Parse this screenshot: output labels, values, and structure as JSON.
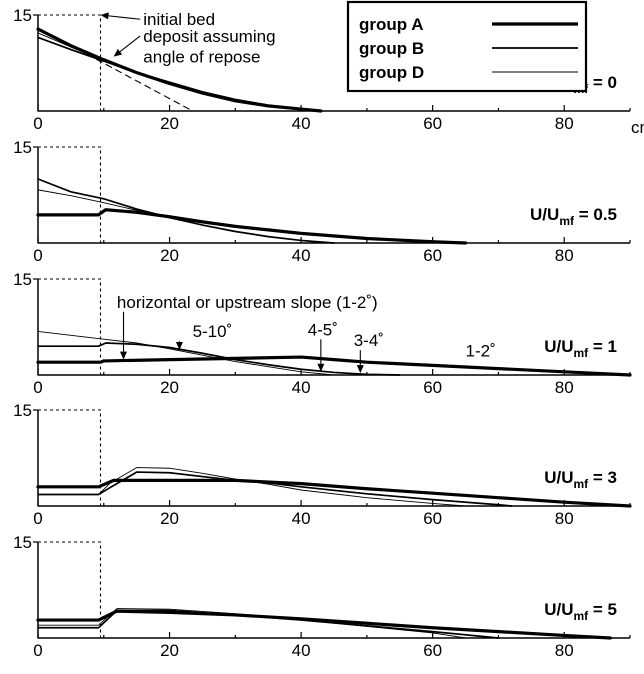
{
  "chart_data": {
    "type": "line",
    "x_unit": "cm",
    "xlim": [
      0,
      90
    ],
    "ylim": [
      0,
      15
    ],
    "x_ticks": [
      "0",
      "20",
      "40",
      "60",
      "80"
    ],
    "y_ticks": [
      "15"
    ],
    "legend": {
      "placement": "top-right",
      "entries": [
        {
          "name": "group A",
          "weight": "thick"
        },
        {
          "name": "group B",
          "weight": "medium"
        },
        {
          "name": "group D",
          "weight": "thin"
        }
      ]
    },
    "panels": [
      {
        "label_main": "U/U",
        "label_sub": "mf",
        "label_value": " = 0",
        "show_unit": true,
        "initial_bed": {
          "x": [
            0,
            9.5,
            9.5
          ],
          "y": [
            15,
            15,
            0
          ]
        },
        "angle_of_repose": {
          "x": [
            0,
            23.5
          ],
          "y": [
            13,
            0
          ]
        },
        "series": [
          {
            "name": "group A",
            "x": [
              0,
              5,
              10,
              15,
              20,
              25,
              30,
              35,
              40,
              43
            ],
            "y": [
              12.8,
              10.2,
              8,
              6,
              4.3,
              2.8,
              1.6,
              0.8,
              0.3,
              0
            ]
          },
          {
            "name": "group B",
            "x": [
              0,
              5,
              10,
              15,
              20,
              25,
              30,
              35,
              40,
              43
            ],
            "y": [
              11.5,
              9.6,
              7.8,
              6,
              4.5,
              3,
              1.8,
              0.9,
              0.3,
              0
            ]
          },
          {
            "name": "group D",
            "x": [
              0,
              5,
              10,
              15,
              20,
              25,
              30,
              35,
              40,
              43
            ],
            "y": [
              12.2,
              10,
              7.9,
              5.9,
              4.3,
              2.8,
              1.6,
              0.8,
              0.3,
              0
            ]
          }
        ],
        "annotations": [
          {
            "text": "initial bed",
            "x": 9.5,
            "y": 15,
            "tx": 16,
            "ty": 13.4
          },
          {
            "text": "deposit assuming",
            "x": 11.5,
            "y": 8.5,
            "tx": 16,
            "ty": 10.8
          },
          {
            "text": "angle of repose",
            "x": null,
            "y": null,
            "tx": 16,
            "ty": 7.6
          }
        ]
      },
      {
        "label_main": "U/U",
        "label_sub": "mf",
        "label_value": " = 0.5",
        "show_unit": false,
        "initial_bed": {
          "x": [
            0,
            9.5,
            9.5
          ],
          "y": [
            15,
            15,
            0
          ]
        },
        "series": [
          {
            "name": "group A",
            "x": [
              0,
              9.2,
              10.3,
              15,
              20,
              25,
              30,
              40,
              50,
              60,
              65
            ],
            "y": [
              4.4,
              4.4,
              5.2,
              4.8,
              4.1,
              3.3,
              2.6,
              1.5,
              0.7,
              0.2,
              0
            ]
          },
          {
            "name": "group B",
            "x": [
              0,
              5,
              10,
              15,
              20,
              25,
              30,
              35,
              40,
              45
            ],
            "y": [
              10,
              8,
              6.9,
              5.3,
              4,
              2.8,
              1.8,
              1,
              0.4,
              0
            ]
          },
          {
            "name": "group D",
            "x": [
              0,
              5,
              10,
              15,
              20,
              25,
              30,
              35,
              40,
              43
            ],
            "y": [
              8.3,
              7.4,
              6.3,
              5.1,
              3.9,
              2.8,
              1.8,
              1,
              0.4,
              0
            ]
          }
        ]
      },
      {
        "label_main": "U/U",
        "label_sub": "mf",
        "label_value": " = 1",
        "show_unit": false,
        "initial_bed": {
          "x": [
            0,
            9.5,
            9.5
          ],
          "y": [
            15,
            15,
            0
          ]
        },
        "series": [
          {
            "name": "group A",
            "x": [
              0,
              9.5,
              10,
              20,
              30,
              40,
              45,
              50,
              60,
              70,
              80,
              90
            ],
            "y": [
              2,
              2,
              2.2,
              2.4,
              2.6,
              2.8,
              2.4,
              2,
              1.5,
              1,
              0.5,
              0
            ]
          },
          {
            "name": "group B",
            "x": [
              0,
              9.2,
              10.3,
              15,
              20,
              25,
              30,
              35,
              40,
              45,
              50,
              55
            ],
            "y": [
              4.5,
              4.5,
              5,
              4.8,
              4.3,
              3.4,
              2.4,
              1.6,
              0.9,
              0.4,
              0.1,
              0
            ]
          },
          {
            "name": "group D",
            "x": [
              0,
              5,
              10,
              15,
              20,
              25,
              30,
              35,
              40,
              45
            ],
            "y": [
              6.8,
              6.2,
              5.6,
              5,
              4.1,
              3.1,
              2.1,
              1.3,
              0.5,
              0
            ]
          }
        ],
        "annotations": [
          {
            "text": "horizontal or upstream slope (1-2˚)",
            "x": 13,
            "y": 2.4,
            "tx": 12,
            "ty": 10.5
          },
          {
            "text": "5-10˚",
            "x": 21.5,
            "y": 3.9,
            "tx": 23.5,
            "ty": 5.9
          },
          {
            "text": "4-5˚",
            "x": 43,
            "y": 0.5,
            "tx": 41,
            "ty": 6.2
          },
          {
            "text": "3-4˚",
            "x": 49,
            "y": 0.3,
            "tx": 48,
            "ty": 4.5
          },
          {
            "text": "1-2˚",
            "x": null,
            "y": null,
            "tx": 65,
            "ty": 2.9
          }
        ]
      },
      {
        "label_main": "U/U",
        "label_sub": "mf",
        "label_value": " = 3",
        "show_unit": false,
        "initial_bed": {
          "x": [
            0,
            9.5,
            9.5
          ],
          "y": [
            15,
            15,
            0
          ]
        },
        "series": [
          {
            "name": "group A",
            "x": [
              0,
              9.2,
              11.5,
              20,
              30,
              40,
              50,
              60,
              70,
              80,
              90
            ],
            "y": [
              3,
              3,
              4,
              4,
              4,
              3.5,
              2.7,
              2,
              1.3,
              0.6,
              0
            ]
          },
          {
            "name": "group B",
            "x": [
              0,
              9.2,
              11,
              15,
              20,
              25,
              30,
              35,
              40,
              50,
              60,
              70,
              72
            ],
            "y": [
              1.8,
              1.8,
              2.9,
              5.3,
              5.2,
              4.6,
              4,
              3.6,
              3,
              1.9,
              1,
              0.2,
              0
            ]
          },
          {
            "name": "group D",
            "x": [
              0,
              9.2,
              11,
              15,
              20,
              25,
              30,
              35,
              40,
              50,
              60,
              65
            ],
            "y": [
              1.8,
              1.8,
              3.6,
              6,
              5.9,
              5.1,
              4.2,
              3.4,
              2.5,
              1.3,
              0.4,
              0
            ]
          }
        ]
      },
      {
        "label_main": "U/U",
        "label_sub": "mf",
        "label_value": " = 5",
        "show_unit": false,
        "initial_bed": {
          "x": [
            0,
            9.5,
            9.5
          ],
          "y": [
            15,
            15,
            0
          ]
        },
        "series": [
          {
            "name": "group A",
            "x": [
              0,
              9.2,
              12,
              20,
              30,
              40,
              50,
              60,
              70,
              80,
              87
            ],
            "y": [
              2.8,
              2.8,
              4.2,
              4,
              3.6,
              3,
              2.3,
              1.6,
              1,
              0.4,
              0
            ]
          },
          {
            "name": "group B",
            "x": [
              0,
              9.2,
              12,
              20,
              30,
              40,
              50,
              60,
              68,
              70
            ],
            "y": [
              1.6,
              1.6,
              4.3,
              4.3,
              3.6,
              2.8,
              1.9,
              1,
              0.2,
              0
            ]
          },
          {
            "name": "group D",
            "x": [
              0,
              9.2,
              12,
              20,
              30,
              40,
              50,
              60,
              65
            ],
            "y": [
              2,
              2,
              4.6,
              4.5,
              3.8,
              2.8,
              1.8,
              0.8,
              0
            ]
          }
        ]
      }
    ]
  }
}
